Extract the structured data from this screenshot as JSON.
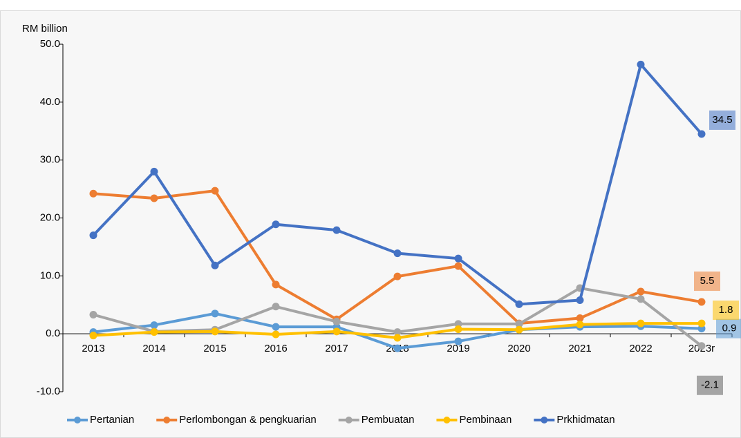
{
  "chart_data": {
    "type": "line",
    "y_axis_label": "RM billion",
    "categories": [
      "2013",
      "2014",
      "2015",
      "2016",
      "2017",
      "2018",
      "2019",
      "2020",
      "2021",
      "2022",
      "2023r"
    ],
    "series": [
      {
        "name": "Pertanian",
        "color": "#5b9bd5",
        "values": [
          0.3,
          1.5,
          3.5,
          1.2,
          1.2,
          -2.5,
          -1.3,
          0.7,
          1.2,
          1.3,
          0.9
        ]
      },
      {
        "name": "Perlombongan & pengkuarian",
        "color": "#ed7d31",
        "values": [
          24.2,
          23.4,
          24.7,
          8.5,
          2.5,
          9.9,
          11.7,
          1.8,
          2.7,
          7.3,
          5.5
        ]
      },
      {
        "name": "Pembuatan",
        "color": "#a5a5a5",
        "values": [
          3.3,
          0.4,
          0.7,
          4.7,
          2.1,
          0.3,
          1.7,
          1.7,
          7.9,
          6.0,
          -2.1
        ]
      },
      {
        "name": "Pembinaan",
        "color": "#ffc000",
        "values": [
          -0.3,
          0.3,
          0.4,
          -0.1,
          0.4,
          -0.7,
          0.8,
          0.7,
          1.6,
          1.8,
          1.8
        ]
      },
      {
        "name": "Prkhidmatan",
        "color": "#4472c4",
        "values": [
          17.0,
          28.0,
          11.8,
          18.9,
          17.9,
          13.9,
          13.0,
          5.1,
          5.8,
          46.5,
          34.5
        ]
      }
    ],
    "ylim": [
      -10,
      50
    ],
    "yticks": [
      {
        "value": -10,
        "label": "-10.0"
      },
      {
        "value": 0,
        "label": "0.0"
      },
      {
        "value": 10,
        "label": "10.0"
      },
      {
        "value": 20,
        "label": "20.0"
      },
      {
        "value": 30,
        "label": "30.0"
      },
      {
        "value": 40,
        "label": "40.0"
      },
      {
        "value": 50,
        "label": "50.0"
      }
    ],
    "legend": "bottom"
  }
}
